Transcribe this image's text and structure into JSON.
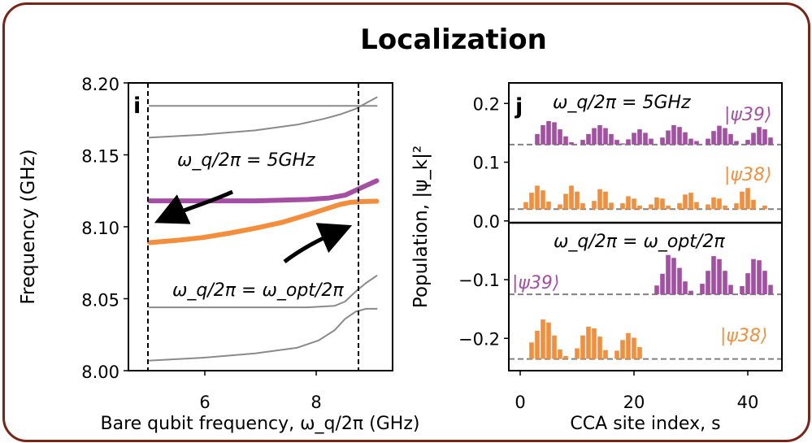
{
  "title": "Localization",
  "colors": {
    "frame": "#7a2416",
    "purple": "#a44fa4",
    "orange": "#f28e3c",
    "gray": "#8a8a8a"
  },
  "chart_data": [
    {
      "panel": "i",
      "type": "line",
      "xlabel": "Bare qubit frequency, ω_q/2π (GHz)",
      "ylabel": "Frequency (GHz)",
      "xlim": [
        4.6,
        9.6
      ],
      "ylim": [
        8.0,
        8.2
      ],
      "xticks": [
        6,
        8
      ],
      "yticks": [
        "8.00",
        "8.05",
        "8.10",
        "8.15",
        "8.20"
      ],
      "vlines": [
        5.0,
        8.8
      ],
      "annotations": [
        "ω_q/2π = 5GHz",
        "ω_q/2π = ω_opt/2π"
      ],
      "series": [
        {
          "role": "mode",
          "color": "gray",
          "x": [
            5.0,
            6.0,
            7.0,
            8.0,
            8.6,
            8.9,
            9.3
          ],
          "y": [
            8.184,
            8.184,
            8.184,
            8.184,
            8.184,
            8.184,
            8.184
          ]
        },
        {
          "role": "mode",
          "color": "gray",
          "x": [
            5.0,
            6.0,
            7.0,
            7.8,
            8.3,
            8.6,
            8.9,
            9.1,
            9.3
          ],
          "y": [
            8.162,
            8.164,
            8.167,
            8.171,
            8.175,
            8.178,
            8.182,
            8.186,
            8.19
          ]
        },
        {
          "role": "psi39",
          "color": "purple",
          "x": [
            5.0,
            6.0,
            7.0,
            8.0,
            8.4,
            8.7,
            9.0,
            9.3
          ],
          "y": [
            8.118,
            8.118,
            8.118,
            8.119,
            8.12,
            8.122,
            8.127,
            8.132
          ]
        },
        {
          "role": "psi38",
          "color": "orange",
          "x": [
            5.0,
            5.5,
            6.0,
            6.5,
            7.0,
            7.5,
            8.0,
            8.3,
            8.6,
            8.8,
            9.0,
            9.3
          ],
          "y": [
            8.089,
            8.0905,
            8.0925,
            8.0955,
            8.099,
            8.103,
            8.1085,
            8.112,
            8.1155,
            8.117,
            8.1175,
            8.1178
          ]
        },
        {
          "role": "mode",
          "color": "gray",
          "x": [
            5.0,
            6.0,
            7.0,
            8.0,
            8.5,
            8.7,
            8.9,
            9.1,
            9.3
          ],
          "y": [
            8.044,
            8.044,
            8.044,
            8.044,
            8.045,
            8.048,
            8.055,
            8.061,
            8.066
          ]
        },
        {
          "role": "mode",
          "color": "gray",
          "x": [
            5.0,
            6.0,
            7.0,
            7.8,
            8.2,
            8.5,
            8.7,
            8.9,
            9.1,
            9.3
          ],
          "y": [
            8.007,
            8.009,
            8.012,
            8.016,
            8.021,
            8.028,
            8.036,
            8.041,
            8.043,
            8.043
          ]
        }
      ]
    },
    {
      "panel": "j",
      "type": "bar",
      "xlabel": "CCA site index, s",
      "ylabel": "Population, |ψ_k|²",
      "xlim": [
        -2,
        46
      ],
      "ylim": [
        -0.255,
        0.235
      ],
      "xticks": [
        0,
        20,
        40
      ],
      "yticks": [
        0.2,
        0.1,
        0.0,
        -0.1,
        -0.2
      ],
      "ytick_labels": [
        "0.2",
        "0.1",
        "0.0",
        "−0.1",
        "−0.2"
      ],
      "separator_y": 0.0,
      "headers": {
        "upper": "ω_q/2π = 5GHz",
        "lower": "ω_q/2π = ω_opt/2π"
      },
      "series": [
        {
          "name": "|ψ39⟩",
          "group": "upper",
          "color": "purple",
          "offset": 0.13,
          "values": [
            0,
            0,
            0,
            0.018,
            0.033,
            0.04,
            0.038,
            0.026,
            0.014,
            0.004,
            0,
            0.008,
            0.018,
            0.028,
            0.033,
            0.028,
            0.018,
            0.008,
            0.002,
            0.009,
            0.02,
            0.026,
            0.02,
            0.01,
            0,
            0.012,
            0.024,
            0.033,
            0.03,
            0.021,
            0.01,
            0.006,
            0,
            0.01,
            0.023,
            0.032,
            0.028,
            0.018,
            0.006,
            0,
            0.008,
            0.02,
            0.03,
            0.026,
            0.012,
            0
          ]
        },
        {
          "name": "|ψ38⟩",
          "group": "upper",
          "color": "orange",
          "offset": 0.02,
          "values": [
            0,
            0.012,
            0.028,
            0.04,
            0.032,
            0.013,
            0,
            0.008,
            0.026,
            0.04,
            0.03,
            0.01,
            0,
            0.014,
            0.034,
            0.03,
            0.011,
            0,
            0.01,
            0.022,
            0.018,
            0.006,
            0,
            0.008,
            0.02,
            0.018,
            0.006,
            0,
            0.01,
            0.025,
            0.028,
            0.012,
            0,
            0.008,
            0.02,
            0.018,
            0.006,
            0,
            0.01,
            0.03,
            0.036,
            0.016,
            0,
            0.006,
            0,
            0
          ]
        },
        {
          "name": "|ψ39⟩",
          "group": "lower",
          "color": "purple",
          "offset": -0.125,
          "values": [
            0,
            0,
            0,
            0,
            0,
            0,
            0,
            0,
            0,
            0,
            0,
            0,
            0,
            0,
            0,
            0,
            0,
            0,
            0,
            0,
            0,
            0,
            0,
            0,
            0.015,
            0.035,
            0.067,
            0.062,
            0.045,
            0.022,
            0.006,
            0,
            0.018,
            0.04,
            0.065,
            0.06,
            0.04,
            0.016,
            0,
            0.014,
            0.036,
            0.06,
            0.058,
            0.04,
            0.016,
            0
          ]
        },
        {
          "name": "|ψ38⟩",
          "group": "lower",
          "color": "orange",
          "offset": -0.235,
          "values": [
            0,
            0,
            0.028,
            0.048,
            0.067,
            0.062,
            0.04,
            0.016,
            0.005,
            0,
            0.018,
            0.04,
            0.055,
            0.052,
            0.038,
            0.015,
            0,
            0.014,
            0.032,
            0.044,
            0.036,
            0.02,
            0,
            0,
            0,
            0,
            0,
            0,
            0,
            0,
            0,
            0,
            0,
            0,
            0,
            0,
            0,
            0,
            0,
            0,
            0,
            0,
            0,
            0,
            0,
            0
          ]
        }
      ]
    }
  ],
  "text": {
    "title": "Localization",
    "i": {
      "panel_label": "i",
      "ylabel": "Frequency (GHz)",
      "yticks": [
        "8.20",
        "8.15",
        "8.10",
        "8.05",
        "8.00"
      ],
      "xticks": [
        "6",
        "8"
      ],
      "annot_5ghz": "ω_q/2π = 5GHz",
      "annot_opt": "ω_q/2π = ω_opt/2π"
    },
    "j": {
      "panel_label": "j",
      "yticks": [
        "0.2",
        "0.1",
        "0.0",
        "−0.1",
        "−0.2"
      ],
      "xticks": [
        "0",
        "20",
        "40"
      ],
      "header_upper": "ω_q/2π = 5GHz",
      "header_lower": "ω_q/2π = ω_opt/2π"
    },
    "labels": {
      "psi39": "|ψ39⟩",
      "psi38": "|ψ38⟩"
    },
    "axis": {
      "xlabel_i": "Bare qubit frequency, ω_q/2π (GHz)",
      "xlabel_j": "CCA site index, s",
      "ylabel_j": "Population, |ψ_k|²"
    }
  }
}
